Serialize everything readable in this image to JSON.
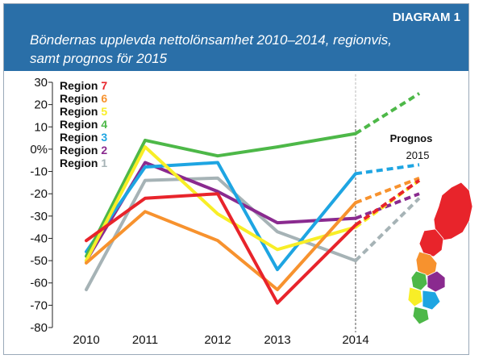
{
  "header": {
    "label": "DIAGRAM 1",
    "title_line1": "Böndernas upplevda nettolönsamhet 2010–2014, regionvis,",
    "title_line2": "samt prognos för 2015"
  },
  "chart_data": {
    "type": "line",
    "title": "Böndernas upplevda nettolönsamhet 2010–2014, regionvis, samt prognos för 2015",
    "x": [
      "2010",
      "2011",
      "2012",
      "2013",
      "2014"
    ],
    "forecast_x": "2015",
    "ylim": [
      -80,
      30
    ],
    "yticks": [
      "30",
      "20",
      "10",
      "0%",
      "-10",
      "-20",
      "-30",
      "-40",
      "-50",
      "-60",
      "-70",
      "-80"
    ],
    "ytick_values": [
      30,
      20,
      10,
      0,
      -10,
      -20,
      -30,
      -40,
      -50,
      -60,
      -70,
      -80
    ],
    "grid": false,
    "legend_position": "top-left",
    "annotation": {
      "line1": "Prognos",
      "line2": "2015"
    },
    "series": [
      {
        "name": "Region 7",
        "number": "7",
        "color": "#e8242b",
        "values": [
          -41,
          -22,
          -20,
          -69,
          -34
        ],
        "forecast": -14
      },
      {
        "name": "Region 6",
        "number": "6",
        "color": "#f7922e",
        "values": [
          -51,
          -28,
          -41,
          -63,
          -24
        ],
        "forecast": -13
      },
      {
        "name": "Region 5",
        "number": "5",
        "color": "#f8ee27",
        "values": [
          -50,
          1,
          -29,
          -45,
          -35
        ],
        "forecast": -14
      },
      {
        "name": "Region 4",
        "number": "4",
        "color": "#4db848",
        "values": [
          -48,
          4,
          -3,
          1,
          7
        ],
        "forecast": 25
      },
      {
        "name": "Region 3",
        "number": "3",
        "color": "#1ea5e2",
        "values": [
          -46,
          -8,
          -6,
          -54,
          -11
        ],
        "forecast": -7
      },
      {
        "name": "Region 2",
        "number": "2",
        "color": "#8a2a8f",
        "values": [
          -50,
          -6,
          -19,
          -33,
          -31
        ],
        "forecast": -20
      },
      {
        "name": "Region 1",
        "number": "1",
        "color": "#a6b3b6",
        "values": [
          -63,
          -14,
          -13,
          -37,
          -50
        ],
        "forecast": -22
      }
    ]
  }
}
